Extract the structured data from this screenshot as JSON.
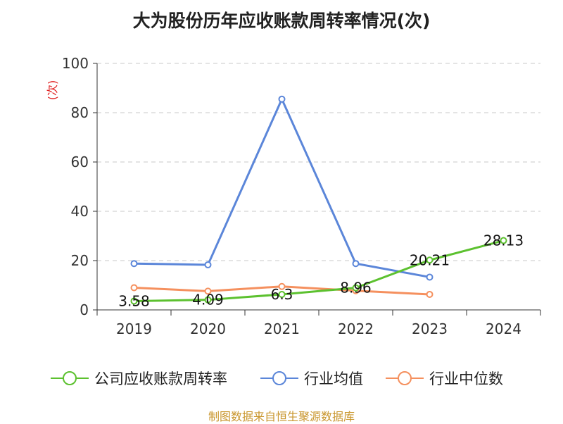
{
  "chart_data": {
    "type": "line",
    "title": "大为股份历年应收账款周转率情况(次)",
    "ylabel": "(次)",
    "ylim": [
      0,
      100
    ],
    "yticks": [
      0,
      20,
      40,
      60,
      80,
      100
    ],
    "categories": [
      "2019",
      "2020",
      "2021",
      "2022",
      "2023",
      "2024"
    ],
    "grid": true,
    "legend_position": "bottom",
    "series": [
      {
        "name": "公司应收账款周转率",
        "color": "#5cc12f",
        "values": [
          3.58,
          4.09,
          6.3,
          8.96,
          20.21,
          28.13
        ],
        "labels": [
          "3.58",
          "4.09",
          "6.3",
          "8.96",
          "20.21",
          "28.13"
        ]
      },
      {
        "name": "行业均值",
        "color": "#5b86d9",
        "values": [
          18.8,
          18.3,
          85.5,
          18.8,
          13.3,
          null
        ]
      },
      {
        "name": "行业中位数",
        "color": "#f5905e",
        "values": [
          9.0,
          7.6,
          9.5,
          7.8,
          6.3,
          null
        ]
      }
    ]
  },
  "source": "制图数据来自恒生聚源数据库"
}
